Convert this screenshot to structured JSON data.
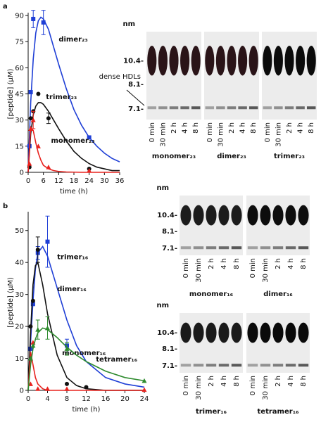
{
  "chart_data": [
    {
      "type": "scatter",
      "panel": "a",
      "xlabel": "time (h)",
      "ylabel": "[peptide] (μM)",
      "xlim": [
        0,
        36
      ],
      "xticks": [
        0,
        6,
        12,
        18,
        24,
        30,
        36
      ],
      "ylim": [
        0,
        90
      ],
      "yticks": [
        0,
        15,
        30,
        45,
        60,
        75,
        90
      ],
      "series": [
        {
          "name": "dimer₂₃",
          "color": "#1f3fd6",
          "marker": "square",
          "x": [
            0.5,
            1,
            2,
            6,
            24
          ],
          "values": [
            15,
            46,
            88,
            86,
            20
          ],
          "errors": [
            null,
            null,
            5,
            7,
            null
          ],
          "fit_x": [
            0,
            1,
            2,
            3,
            4,
            5,
            6,
            8,
            10,
            12,
            15,
            18,
            21,
            24,
            27,
            30,
            33,
            36
          ],
          "fit": [
            0,
            40,
            65,
            80,
            87,
            89,
            88,
            82,
            72,
            62,
            48,
            36,
            27,
            20,
            15,
            11,
            8,
            6
          ]
        },
        {
          "name": "trimer₂₃",
          "color": "#111111",
          "marker": "circle",
          "x": [
            0.5,
            1,
            2,
            4,
            8,
            24
          ],
          "values": [
            3,
            31,
            35,
            45,
            31,
            2
          ],
          "errors": [
            null,
            null,
            null,
            null,
            3,
            null
          ],
          "fit_x": [
            0,
            1,
            2,
            3,
            4,
            5,
            6,
            8,
            10,
            12,
            15,
            18,
            21,
            24,
            27,
            30,
            33,
            36
          ],
          "fit": [
            0,
            22,
            33,
            38,
            40,
            40,
            39,
            35,
            30,
            25,
            18,
            12,
            8,
            5,
            3,
            2,
            1,
            1
          ]
        },
        {
          "name": "monomer₂₃",
          "color": "#e8231f",
          "marker": "triangle",
          "x": [
            0.5,
            1,
            2,
            4,
            8,
            24
          ],
          "values": [
            5,
            25,
            30,
            15,
            3,
            1
          ],
          "errors": [
            null,
            null,
            5,
            null,
            null,
            null
          ],
          "fit_x": [
            0,
            1,
            2,
            3,
            4,
            5,
            6,
            8,
            10,
            12,
            15,
            18,
            21,
            24,
            27,
            30,
            33,
            36
          ],
          "fit": [
            0,
            26,
            24,
            17,
            11,
            7,
            4,
            2,
            1,
            0.5,
            0.2,
            0.1,
            0,
            0,
            0,
            0,
            0,
            0
          ]
        }
      ]
    },
    {
      "type": "scatter",
      "panel": "b",
      "xlabel": "time (h)",
      "ylabel": "[peptide] (μM)",
      "xlim": [
        0,
        24
      ],
      "xticks": [
        0,
        4,
        8,
        12,
        16,
        20,
        24
      ],
      "ylim": [
        0,
        55
      ],
      "yticks": [
        0,
        10,
        20,
        30,
        40,
        50
      ],
      "series": [
        {
          "name": "dimer₁₆",
          "color": "#1f3fd6",
          "marker": "square",
          "x": [
            0.5,
            1,
            2,
            4,
            8
          ],
          "values": [
            13,
            27,
            43,
            46.5,
            14
          ],
          "errors": [
            null,
            null,
            2,
            8,
            2
          ],
          "fit_x": [
            0,
            0.5,
            1,
            1.5,
            2,
            3,
            4,
            6,
            8,
            10,
            12,
            16,
            20,
            24
          ],
          "fit": [
            0,
            15,
            28,
            38,
            43,
            45,
            42,
            32,
            22,
            14,
            9,
            4,
            2,
            1
          ]
        },
        {
          "name": "trimer₁₆",
          "color": "#111111",
          "marker": "circle",
          "x": [
            0.5,
            1,
            2,
            8,
            12
          ],
          "values": [
            20,
            28,
            44,
            2,
            1
          ],
          "errors": [
            null,
            null,
            4,
            null,
            null
          ],
          "fit_x": [
            0,
            0.5,
            1,
            1.5,
            2,
            3,
            4,
            6,
            8,
            10,
            12,
            16,
            20,
            24
          ],
          "fit": [
            0,
            18,
            33,
            39,
            40,
            33,
            24,
            11,
            4,
            1.5,
            0.5,
            0,
            0,
            0
          ]
        },
        {
          "name": "monomer₁₆",
          "color": "#e8231f",
          "marker": "triangle",
          "x": [
            0.5,
            1,
            2,
            4,
            8,
            24
          ],
          "values": [
            2,
            15,
            0.5,
            0.5,
            0.5,
            0.2
          ],
          "errors": [
            null,
            null,
            null,
            null,
            null,
            null
          ],
          "fit_x": [
            0,
            0.5,
            1,
            1.5,
            2,
            3,
            4,
            6,
            8,
            10,
            12,
            16,
            20,
            24
          ],
          "fit": [
            0,
            12,
            8,
            4,
            2,
            0.5,
            0,
            0,
            0,
            0,
            0,
            0,
            0,
            0
          ]
        },
        {
          "name": "tetramer₁₆",
          "color": "#2e8b2e",
          "marker": "triangle",
          "x": [
            0.5,
            1,
            2,
            4,
            8,
            24
          ],
          "values": [
            10,
            14,
            19,
            19.5,
            13,
            3
          ],
          "errors": [
            null,
            null,
            3,
            3.5,
            2,
            null
          ],
          "fit_x": [
            0,
            0.5,
            1,
            1.5,
            2,
            3,
            4,
            6,
            8,
            10,
            12,
            16,
            20,
            24
          ],
          "fit": [
            0,
            8,
            13,
            16,
            18,
            19.5,
            19,
            16.5,
            13.5,
            11,
            9,
            6,
            4,
            3
          ]
        }
      ]
    }
  ],
  "gels": [
    {
      "unit": "nm",
      "markers": [
        "10.4-",
        "8.1-",
        "7.1-"
      ],
      "annotation": "dense HDLs",
      "lanes": [
        "0 min",
        "30 min",
        "2 h",
        "4 h",
        "8 h"
      ],
      "blots": [
        "monomer₂₃",
        "dimer₂₃",
        "trimer₂₃"
      ]
    },
    {
      "unit": "nm",
      "markers": [
        "10.4-",
        "8.1-",
        "7.1-"
      ],
      "lanes": [
        "0 min",
        "30 min",
        "2 h",
        "4 h",
        "8 h"
      ],
      "blots": [
        "monomer₁₆",
        "dimer₁₆",
        "trimer₁₆",
        "tetramer₁₆"
      ]
    }
  ]
}
